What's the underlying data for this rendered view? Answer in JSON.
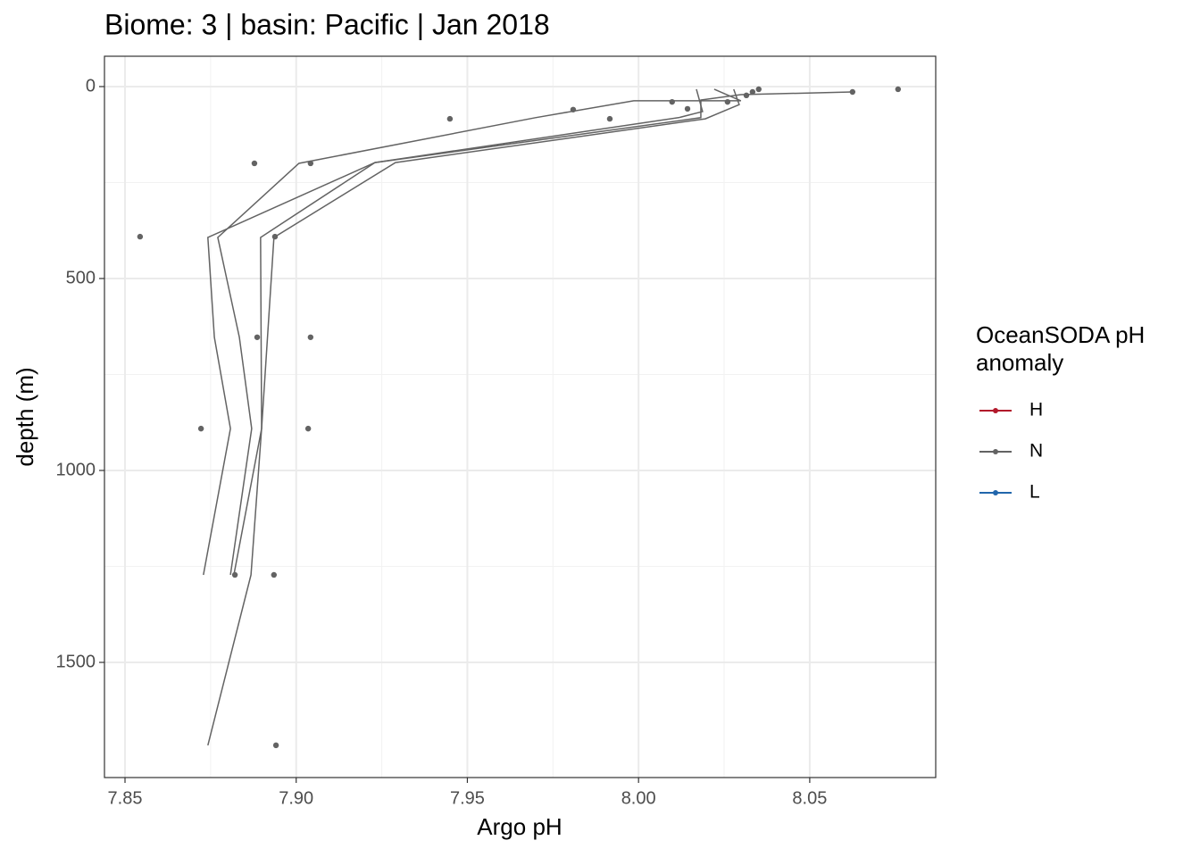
{
  "chart_data": {
    "type": "line",
    "title": "Biome: 3 | basin: Pacific  | Jan 2018",
    "x_label": "Argo pH",
    "y_label": "depth (m)",
    "xlim": [
      7.844,
      8.0868
    ],
    "ylim": [
      -79,
      1800
    ],
    "y_reverse": true,
    "xticks": [
      7.85,
      {
        "value": 7.9,
        "label": "7.90"
      },
      7.95,
      {
        "value": 8.0,
        "label": "8.00"
      },
      8.05
    ],
    "yticks": [
      0,
      500,
      1000,
      1500
    ],
    "grid": true,
    "legend": {
      "title": "OceanSODA pH anomaly",
      "position": "right",
      "entries": [
        {
          "name": "H",
          "color": "#b2182b"
        },
        {
          "name": "N",
          "color": "#636363"
        },
        {
          "name": "L",
          "color": "#2166ac"
        }
      ]
    },
    "profiles": [
      {
        "color": "#636363",
        "x": [
          8.0625,
          8.0299,
          8.0182,
          8.0182,
          7.923,
          7.8742,
          7.8761,
          7.8808,
          7.8729
        ],
        "y": [
          14,
          21,
          35,
          81,
          198,
          393,
          653,
          891,
          1272
        ]
      },
      {
        "color": "#636363",
        "x": [
          8.0221,
          8.0299,
          7.9986,
          7.9699,
          7.9008,
          7.8771,
          7.8834,
          7.887,
          7.8808
        ],
        "y": [
          7,
          37,
          37,
          81,
          200,
          393,
          653,
          891,
          1272
        ]
      },
      {
        "color": "#636363",
        "x": [
          8.0169,
          8.0187,
          8.0117,
          7.923,
          7.8896,
          7.8899,
          7.8818
        ],
        "y": [
          7,
          65,
          81,
          198,
          393,
          891,
          1272
        ]
      },
      {
        "color": "#636363",
        "x": [
          8.0278,
          8.0294,
          8.0195,
          7.929,
          7.8935,
          7.8899,
          7.8868,
          7.8742
        ],
        "y": [
          7,
          47,
          84,
          198,
          393,
          891,
          1272,
          1716
        ]
      }
    ],
    "points": {
      "color": "#636363",
      "x": [
        8.0758,
        8.0625,
        8.0351,
        8.0333,
        8.0315,
        8.026,
        8.0098,
        8.0143,
        7.9916,
        7.9809,
        7.9449,
        7.9042,
        7.8878,
        7.8544,
        7.8938,
        7.8886,
        7.9042,
        7.8722,
        7.9035,
        7.8821,
        7.8935,
        7.8941
      ],
      "y": [
        7,
        14,
        7,
        14,
        23,
        40,
        40,
        58,
        84,
        60,
        84,
        200,
        200,
        391,
        391,
        653,
        653,
        891,
        891,
        1272,
        1272,
        1716
      ]
    }
  }
}
